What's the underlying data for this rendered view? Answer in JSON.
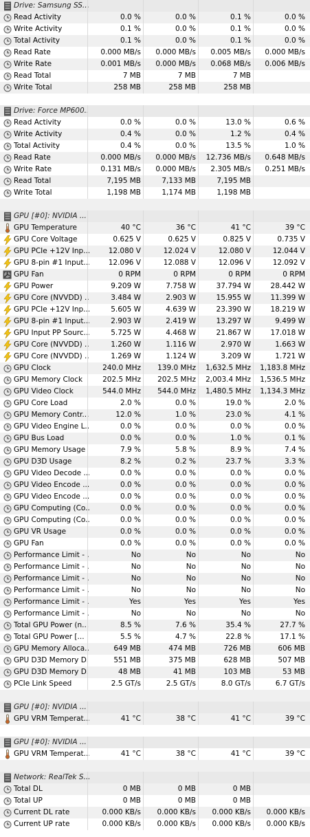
{
  "sections": [
    {
      "title": "Drive: Samsung SS...",
      "header_icon": "drive-icon",
      "rows": [
        {
          "icon": "clock-icon",
          "label": "Read Activity",
          "values": [
            "0.0 %",
            "0.0 %",
            "0.1 %",
            "0.0 %"
          ]
        },
        {
          "icon": "clock-icon",
          "label": "Write Activity",
          "values": [
            "0.1 %",
            "0.0 %",
            "0.1 %",
            "0.0 %"
          ]
        },
        {
          "icon": "clock-icon",
          "label": "Total Activity",
          "values": [
            "0.1 %",
            "0.0 %",
            "0.1 %",
            "0.0 %"
          ]
        },
        {
          "icon": "clock-icon",
          "label": "Read Rate",
          "values": [
            "0.000 MB/s",
            "0.000 MB/s",
            "0.005 MB/s",
            "0.000 MB/s"
          ]
        },
        {
          "icon": "clock-icon",
          "label": "Write Rate",
          "values": [
            "0.001 MB/s",
            "0.000 MB/s",
            "0.068 MB/s",
            "0.006 MB/s"
          ]
        },
        {
          "icon": "clock-icon",
          "label": "Read Total",
          "values": [
            "7 MB",
            "7 MB",
            "7 MB",
            ""
          ]
        },
        {
          "icon": "clock-icon",
          "label": "Write Total",
          "values": [
            "258 MB",
            "258 MB",
            "258 MB",
            ""
          ]
        }
      ]
    },
    {
      "title": "Drive: Force MP600...",
      "header_icon": "drive-icon",
      "rows": [
        {
          "icon": "clock-icon",
          "label": "Read Activity",
          "values": [
            "0.0 %",
            "0.0 %",
            "13.0 %",
            "0.6 %"
          ]
        },
        {
          "icon": "clock-icon",
          "label": "Write Activity",
          "values": [
            "0.4 %",
            "0.0 %",
            "1.2 %",
            "0.4 %"
          ]
        },
        {
          "icon": "clock-icon",
          "label": "Total Activity",
          "values": [
            "0.4 %",
            "0.0 %",
            "13.5 %",
            "1.0 %"
          ]
        },
        {
          "icon": "clock-icon",
          "label": "Read Rate",
          "values": [
            "0.000 MB/s",
            "0.000 MB/s",
            "12.736 MB/s",
            "0.648 MB/s"
          ]
        },
        {
          "icon": "clock-icon",
          "label": "Write Rate",
          "values": [
            "0.131 MB/s",
            "0.000 MB/s",
            "2.305 MB/s",
            "0.251 MB/s"
          ]
        },
        {
          "icon": "clock-icon",
          "label": "Read Total",
          "values": [
            "7,195 MB",
            "7,133 MB",
            "7,195 MB",
            ""
          ]
        },
        {
          "icon": "clock-icon",
          "label": "Write Total",
          "values": [
            "1,198 MB",
            "1,174 MB",
            "1,198 MB",
            ""
          ]
        }
      ]
    },
    {
      "title": "GPU [#0]: NVIDIA ...",
      "header_icon": "chip-icon",
      "rows": [
        {
          "icon": "thermometer-icon",
          "label": "GPU Temperature",
          "values": [
            "40 °C",
            "36 °C",
            "41 °C",
            "39 °C"
          ]
        },
        {
          "icon": "bolt-icon",
          "label": "GPU Core Voltage",
          "values": [
            "0.625 V",
            "0.625 V",
            "0.825 V",
            "0.735 V"
          ]
        },
        {
          "icon": "bolt-icon",
          "label": "GPU PCIe +12V Inp...",
          "values": [
            "12.080 V",
            "12.024 V",
            "12.080 V",
            "12.044 V"
          ]
        },
        {
          "icon": "bolt-icon",
          "label": "GPU 8-pin #1 Input...",
          "values": [
            "12.096 V",
            "12.088 V",
            "12.096 V",
            "12.092 V"
          ]
        },
        {
          "icon": "fan-icon",
          "label": "GPU Fan",
          "values": [
            "0 RPM",
            "0 RPM",
            "0 RPM",
            "0 RPM"
          ]
        },
        {
          "icon": "bolt-icon",
          "label": "GPU Power",
          "values": [
            "9.209 W",
            "7.758 W",
            "37.794 W",
            "28.442 W"
          ]
        },
        {
          "icon": "bolt-icon",
          "label": "GPU Core (NVVDD) ...",
          "values": [
            "3.484 W",
            "2.903 W",
            "15.955 W",
            "11.399 W"
          ]
        },
        {
          "icon": "bolt-icon",
          "label": "GPU PCIe +12V Inp...",
          "values": [
            "5.605 W",
            "4.639 W",
            "23.390 W",
            "18.219 W"
          ]
        },
        {
          "icon": "bolt-icon",
          "label": "GPU 8-pin #1 Input...",
          "values": [
            "2.903 W",
            "2.419 W",
            "13.297 W",
            "9.499 W"
          ]
        },
        {
          "icon": "bolt-icon",
          "label": "GPU Input PP Sourc...",
          "values": [
            "5.725 W",
            "4.468 W",
            "21.867 W",
            "17.018 W"
          ]
        },
        {
          "icon": "bolt-icon",
          "label": "GPU Core (NVVDD) ...",
          "values": [
            "1.260 W",
            "1.116 W",
            "2.970 W",
            "1.663 W"
          ]
        },
        {
          "icon": "bolt-icon",
          "label": "GPU Core (NVVDD) ...",
          "values": [
            "1.269 W",
            "1.124 W",
            "3.209 W",
            "1.721 W"
          ]
        },
        {
          "icon": "clock-icon",
          "label": "GPU Clock",
          "values": [
            "240.0 MHz",
            "139.0 MHz",
            "1,632.5 MHz",
            "1,183.8 MHz"
          ]
        },
        {
          "icon": "clock-icon",
          "label": "GPU Memory Clock",
          "values": [
            "202.5 MHz",
            "202.5 MHz",
            "2,003.4 MHz",
            "1,536.5 MHz"
          ]
        },
        {
          "icon": "clock-icon",
          "label": "GPU Video Clock",
          "values": [
            "544.0 MHz",
            "544.0 MHz",
            "1,480.5 MHz",
            "1,134.3 MHz"
          ]
        },
        {
          "icon": "clock-icon",
          "label": "GPU Core Load",
          "values": [
            "2.0 %",
            "0.0 %",
            "19.0 %",
            "2.0 %"
          ]
        },
        {
          "icon": "clock-icon",
          "label": "GPU Memory Contr...",
          "values": [
            "12.0 %",
            "1.0 %",
            "23.0 %",
            "4.1 %"
          ]
        },
        {
          "icon": "clock-icon",
          "label": "GPU Video Engine L...",
          "values": [
            "0.0 %",
            "0.0 %",
            "0.0 %",
            "0.0 %"
          ]
        },
        {
          "icon": "clock-icon",
          "label": "GPU Bus Load",
          "values": [
            "0.0 %",
            "0.0 %",
            "1.0 %",
            "0.1 %"
          ]
        },
        {
          "icon": "clock-icon",
          "label": "GPU Memory Usage",
          "values": [
            "7.9 %",
            "5.8 %",
            "8.9 %",
            "7.4 %"
          ]
        },
        {
          "icon": "clock-icon",
          "label": "GPU D3D Usage",
          "values": [
            "8.2 %",
            "0.2 %",
            "23.7 %",
            "3.3 %"
          ]
        },
        {
          "icon": "clock-icon",
          "label": "GPU Video Decode ...",
          "values": [
            "0.0 %",
            "0.0 %",
            "0.0 %",
            "0.0 %"
          ]
        },
        {
          "icon": "clock-icon",
          "label": "GPU Video Encode ...",
          "values": [
            "0.0 %",
            "0.0 %",
            "0.0 %",
            "0.0 %"
          ]
        },
        {
          "icon": "clock-icon",
          "label": "GPU Video Encode ...",
          "values": [
            "0.0 %",
            "0.0 %",
            "0.0 %",
            "0.0 %"
          ]
        },
        {
          "icon": "clock-icon",
          "label": "GPU Computing (Co...",
          "values": [
            "0.0 %",
            "0.0 %",
            "0.0 %",
            "0.0 %"
          ]
        },
        {
          "icon": "clock-icon",
          "label": "GPU Computing (Co...",
          "values": [
            "0.0 %",
            "0.0 %",
            "0.0 %",
            "0.0 %"
          ]
        },
        {
          "icon": "clock-icon",
          "label": "GPU VR Usage",
          "values": [
            "0.0 %",
            "0.0 %",
            "0.0 %",
            "0.0 %"
          ]
        },
        {
          "icon": "clock-icon",
          "label": "GPU Fan",
          "values": [
            "0.0 %",
            "0.0 %",
            "0.0 %",
            "0.0 %"
          ]
        },
        {
          "icon": "clock-icon",
          "label": "Performance Limit - ...",
          "values": [
            "No",
            "No",
            "No",
            "No"
          ]
        },
        {
          "icon": "clock-icon",
          "label": "Performance Limit - ...",
          "values": [
            "No",
            "No",
            "No",
            "No"
          ]
        },
        {
          "icon": "clock-icon",
          "label": "Performance Limit - ...",
          "values": [
            "No",
            "No",
            "No",
            "No"
          ]
        },
        {
          "icon": "clock-icon",
          "label": "Performance Limit - ...",
          "values": [
            "No",
            "No",
            "No",
            "No"
          ]
        },
        {
          "icon": "clock-icon",
          "label": "Performance Limit - ...",
          "values": [
            "Yes",
            "Yes",
            "Yes",
            "Yes"
          ]
        },
        {
          "icon": "clock-icon",
          "label": "Performance Limit - ...",
          "values": [
            "No",
            "No",
            "No",
            "No"
          ]
        },
        {
          "icon": "clock-icon",
          "label": "Total GPU Power (n...",
          "values": [
            "8.5 %",
            "7.6 %",
            "35.4 %",
            "27.7 %"
          ]
        },
        {
          "icon": "clock-icon",
          "label": "Total GPU Power [...",
          "values": [
            "5.5 %",
            "4.7 %",
            "22.8 %",
            "17.1 %"
          ]
        },
        {
          "icon": "clock-icon",
          "label": "GPU Memory Alloca...",
          "values": [
            "649 MB",
            "474 MB",
            "726 MB",
            "606 MB"
          ]
        },
        {
          "icon": "clock-icon",
          "label": "GPU D3D Memory D...",
          "values": [
            "551 MB",
            "375 MB",
            "628 MB",
            "507 MB"
          ]
        },
        {
          "icon": "clock-icon",
          "label": "GPU D3D Memory D...",
          "values": [
            "48 MB",
            "41 MB",
            "103 MB",
            "53 MB"
          ]
        },
        {
          "icon": "clock-icon",
          "label": "PCIe Link Speed",
          "values": [
            "2.5 GT/s",
            "2.5 GT/s",
            "8.0 GT/s",
            "6.7 GT/s"
          ]
        }
      ]
    },
    {
      "title": "GPU [#0]: NVIDIA ...",
      "header_icon": "chip-icon",
      "rows": [
        {
          "icon": "thermometer-icon",
          "label": "GPU VRM Temperat...",
          "values": [
            "41 °C",
            "38 °C",
            "41 °C",
            "39 °C"
          ]
        }
      ]
    },
    {
      "title": "GPU [#0]: NVIDIA ...",
      "header_icon": "chip-icon",
      "rows": [
        {
          "icon": "thermometer-icon",
          "label": "GPU VRM Temperat...",
          "values": [
            "41 °C",
            "38 °C",
            "41 °C",
            "39 °C"
          ]
        }
      ]
    },
    {
      "title": "Network: RealTek S...",
      "header_icon": "network-icon",
      "rows": [
        {
          "icon": "clock-icon",
          "label": "Total DL",
          "values": [
            "0 MB",
            "0 MB",
            "0 MB",
            ""
          ]
        },
        {
          "icon": "clock-icon",
          "label": "Total UP",
          "values": [
            "0 MB",
            "0 MB",
            "0 MB",
            ""
          ]
        },
        {
          "icon": "clock-icon",
          "label": "Current DL rate",
          "values": [
            "0.000 KB/s",
            "0.000 KB/s",
            "0.000 KB/s",
            "0.000 KB/s"
          ]
        },
        {
          "icon": "clock-icon",
          "label": "Current UP rate",
          "values": [
            "0.000 KB/s",
            "0.000 KB/s",
            "0.000 KB/s",
            "0.000 KB/s"
          ]
        }
      ]
    }
  ]
}
